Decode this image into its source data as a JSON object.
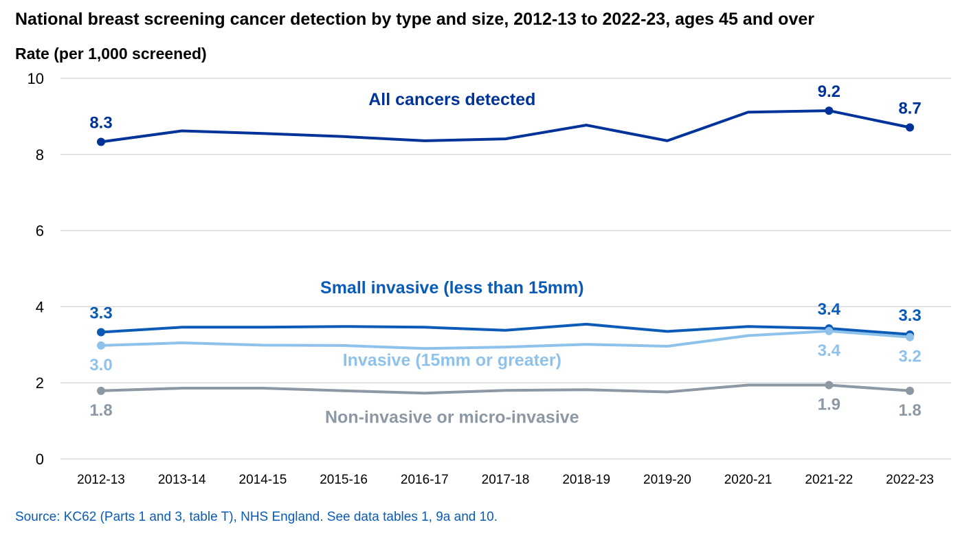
{
  "chart_data": {
    "type": "line",
    "title": "National breast screening cancer detection by type and size, 2012-13 to 2022-23, ages 45 and over",
    "ylabel": "Rate (per 1,000 screened)",
    "xlabel": "",
    "ylim": [
      0,
      10
    ],
    "yticks": [
      "0",
      "2",
      "4",
      "6",
      "8",
      "10"
    ],
    "grid": true,
    "categories": [
      "2012-13",
      "2013-14",
      "2014-15",
      "2015-16",
      "2016-17",
      "2017-18",
      "2018-19",
      "2019-20",
      "2020-21",
      "2021-22",
      "2022-23"
    ],
    "series": [
      {
        "name": "All cancers detected",
        "color": "#003399",
        "values": [
          8.33,
          8.62,
          8.55,
          8.47,
          8.36,
          8.41,
          8.77,
          8.36,
          9.11,
          9.15,
          8.71
        ],
        "markers": [
          0,
          9,
          10
        ],
        "labels": [
          {
            "index": 0,
            "text": "8.3",
            "position": "above"
          },
          {
            "index": 9,
            "text": "9.2",
            "position": "above"
          },
          {
            "index": 10,
            "text": "8.7",
            "position": "above"
          }
        ]
      },
      {
        "name": "Small invasive (less than 15mm)",
        "color": "#0a5bb8",
        "values": [
          3.33,
          3.46,
          3.46,
          3.48,
          3.46,
          3.38,
          3.54,
          3.35,
          3.48,
          3.43,
          3.27
        ],
        "markers": [
          0,
          9,
          10
        ],
        "labels": [
          {
            "index": 0,
            "text": "3.3",
            "position": "above"
          },
          {
            "index": 9,
            "text": "3.4",
            "position": "above"
          },
          {
            "index": 10,
            "text": "3.3",
            "position": "above"
          }
        ]
      },
      {
        "name": "Invasive (15mm or greater)",
        "color": "#8fc2ea",
        "values": [
          2.98,
          3.05,
          2.99,
          2.98,
          2.9,
          2.94,
          3.01,
          2.96,
          3.24,
          3.36,
          3.2
        ],
        "markers": [
          0,
          9,
          10
        ],
        "labels": [
          {
            "index": 0,
            "text": "3.0",
            "position": "below"
          },
          {
            "index": 9,
            "text": "3.4",
            "position": "below"
          },
          {
            "index": 10,
            "text": "3.2",
            "position": "below"
          }
        ]
      },
      {
        "name": "Non-invasive or micro-invasive",
        "color": "#8c98a4",
        "values": [
          1.79,
          1.86,
          1.86,
          1.79,
          1.73,
          1.8,
          1.82,
          1.76,
          1.94,
          1.94,
          1.79
        ],
        "markers": [
          0,
          9,
          10
        ],
        "labels": [
          {
            "index": 0,
            "text": "1.8",
            "position": "below"
          },
          {
            "index": 9,
            "text": "1.9",
            "position": "below"
          },
          {
            "index": 10,
            "text": "1.8",
            "position": "below"
          }
        ]
      }
    ],
    "series_label_placement": [
      {
        "series": 0,
        "near_index": 4.0,
        "near_value": 9.3
      },
      {
        "series": 1,
        "near_index": 4.0,
        "near_value": 4.35
      },
      {
        "series": 2,
        "near_index": 4.0,
        "near_value": 2.45
      },
      {
        "series": 3,
        "near_index": 4.0,
        "near_value": 0.95
      }
    ],
    "source": "Source: KC62 (Parts 1 and 3, table T), NHS England. See data tables 1, 9a and 10."
  }
}
